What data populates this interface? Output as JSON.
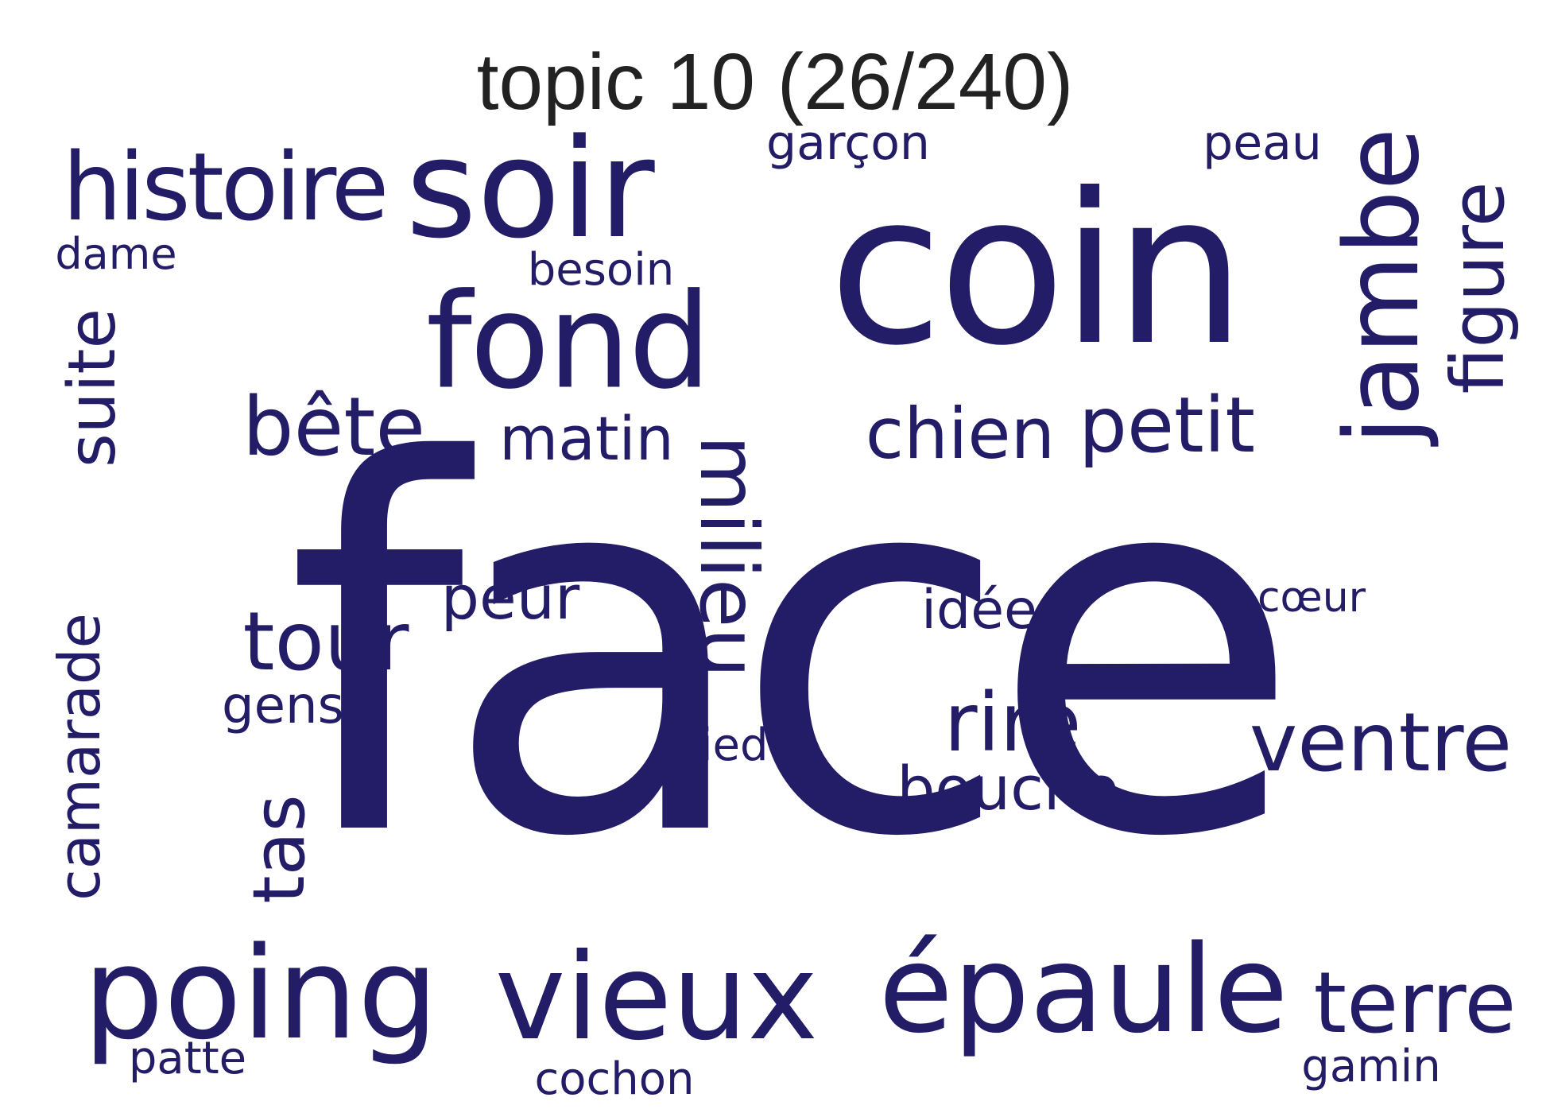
{
  "title": "topic 10 (26/240)",
  "colors": {
    "word": "#231c66",
    "title": "#222222",
    "background": "#ffffff"
  },
  "words": {
    "face": "face",
    "coin": "coin",
    "soir": "soir",
    "histoire": "histoire",
    "fond": "fond",
    "bete": "bête",
    "matin": "matin",
    "chien": "chien",
    "petit": "petit",
    "jambe": "jambe",
    "figure": "figure",
    "garcon": "garçon",
    "peau": "peau",
    "dame": "dame",
    "besoin": "besoin",
    "suite": "suite",
    "milieu": "milieu",
    "peur": "peur",
    "idee": "idée",
    "coeur": "cœur",
    "tour": "tour",
    "camarade": "camarade",
    "gens": "gens",
    "rire": "rire",
    "ventre": "ventre",
    "pied": "pied",
    "bouche": "bouche",
    "tas": "tas",
    "poing": "poing",
    "vieux": "vieux",
    "epaule": "épaule",
    "terre": "terre",
    "patte": "patte",
    "cochon": "cochon",
    "gamin": "gamin"
  }
}
